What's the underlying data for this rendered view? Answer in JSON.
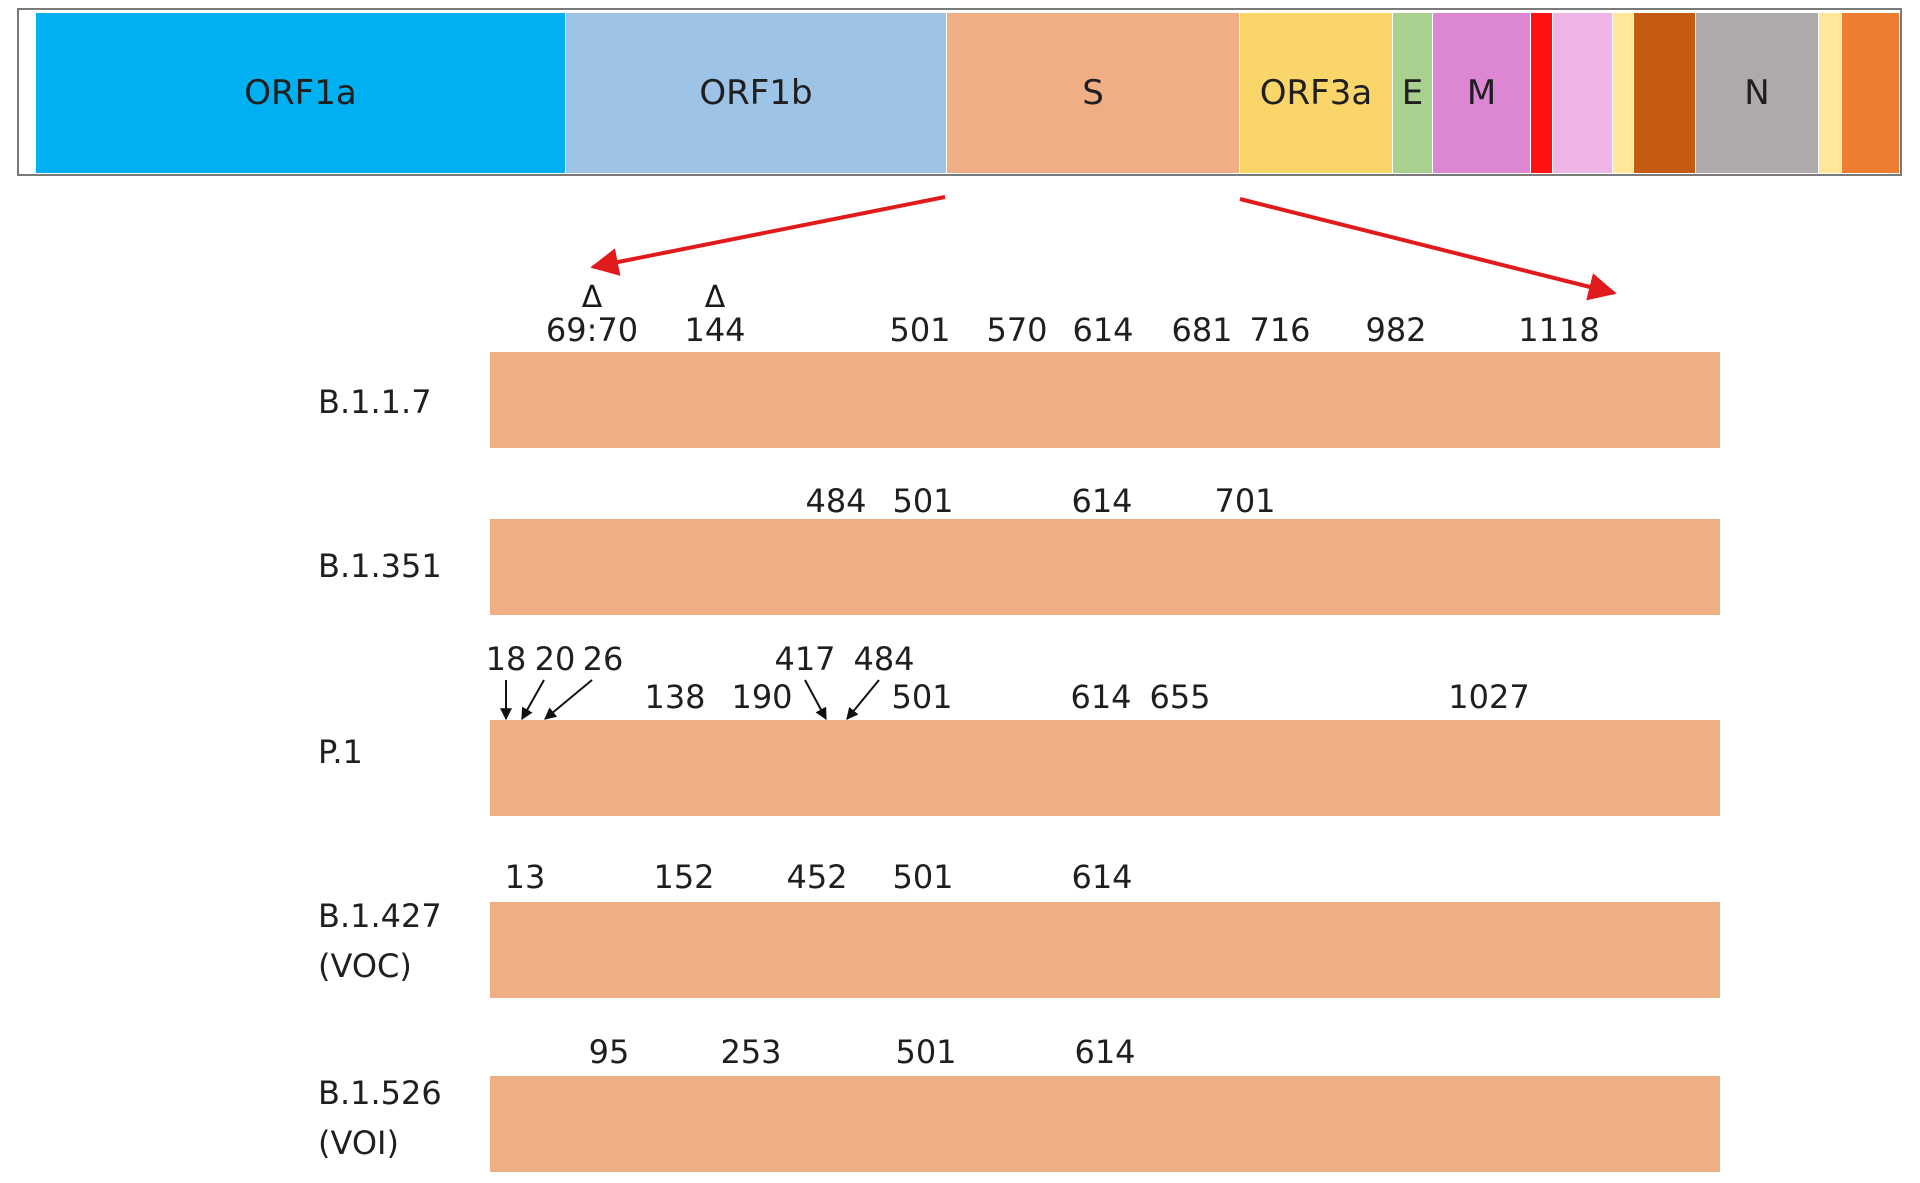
{
  "genome": {
    "genes": [
      {
        "label": "ORF1a",
        "color": "#00b0f0"
      },
      {
        "label": "ORF1b",
        "color": "#9dc3e6"
      },
      {
        "label": "S",
        "color": "#f0ae85"
      },
      {
        "label": "ORF3a",
        "color": "#fad66a"
      },
      {
        "label": "E",
        "color": "#a9d08e"
      },
      {
        "label": "M",
        "color": "#dd86d3"
      },
      {
        "label": "",
        "color": "#ff1111"
      },
      {
        "label": "",
        "color": "#efb4e6"
      },
      {
        "label": "",
        "color": "#ffe699"
      },
      {
        "label": "",
        "color": "#c55a11"
      },
      {
        "label": "N",
        "color": "#aeaaaa"
      },
      {
        "label": "",
        "color": "#ffe699"
      },
      {
        "label": "",
        "color": "#ed7d31"
      }
    ]
  },
  "zoom_arrow_color": "#e11b1b",
  "deletion_symbol": "Δ",
  "variants": [
    {
      "name": "B.1.1.7",
      "positions": [
        "69:70",
        "144",
        "501",
        "570",
        "614",
        "681",
        "716",
        "982",
        "1118"
      ]
    },
    {
      "name": "B.1.351",
      "positions": [
        "484",
        "501",
        "614",
        "701"
      ]
    },
    {
      "name": "P.1",
      "upper_positions": [
        "18",
        "20",
        "26",
        "417",
        "484"
      ],
      "lower_positions": [
        "138",
        "190",
        "501",
        "614",
        "655",
        "1027"
      ]
    },
    {
      "name": "B.1.427",
      "qualifier": "(VOC)",
      "positions": [
        "13",
        "152",
        "452",
        "501",
        "614"
      ]
    },
    {
      "name": "B.1.526",
      "qualifier": "(VOI)",
      "positions": [
        "95",
        "253",
        "501",
        "614"
      ]
    }
  ]
}
